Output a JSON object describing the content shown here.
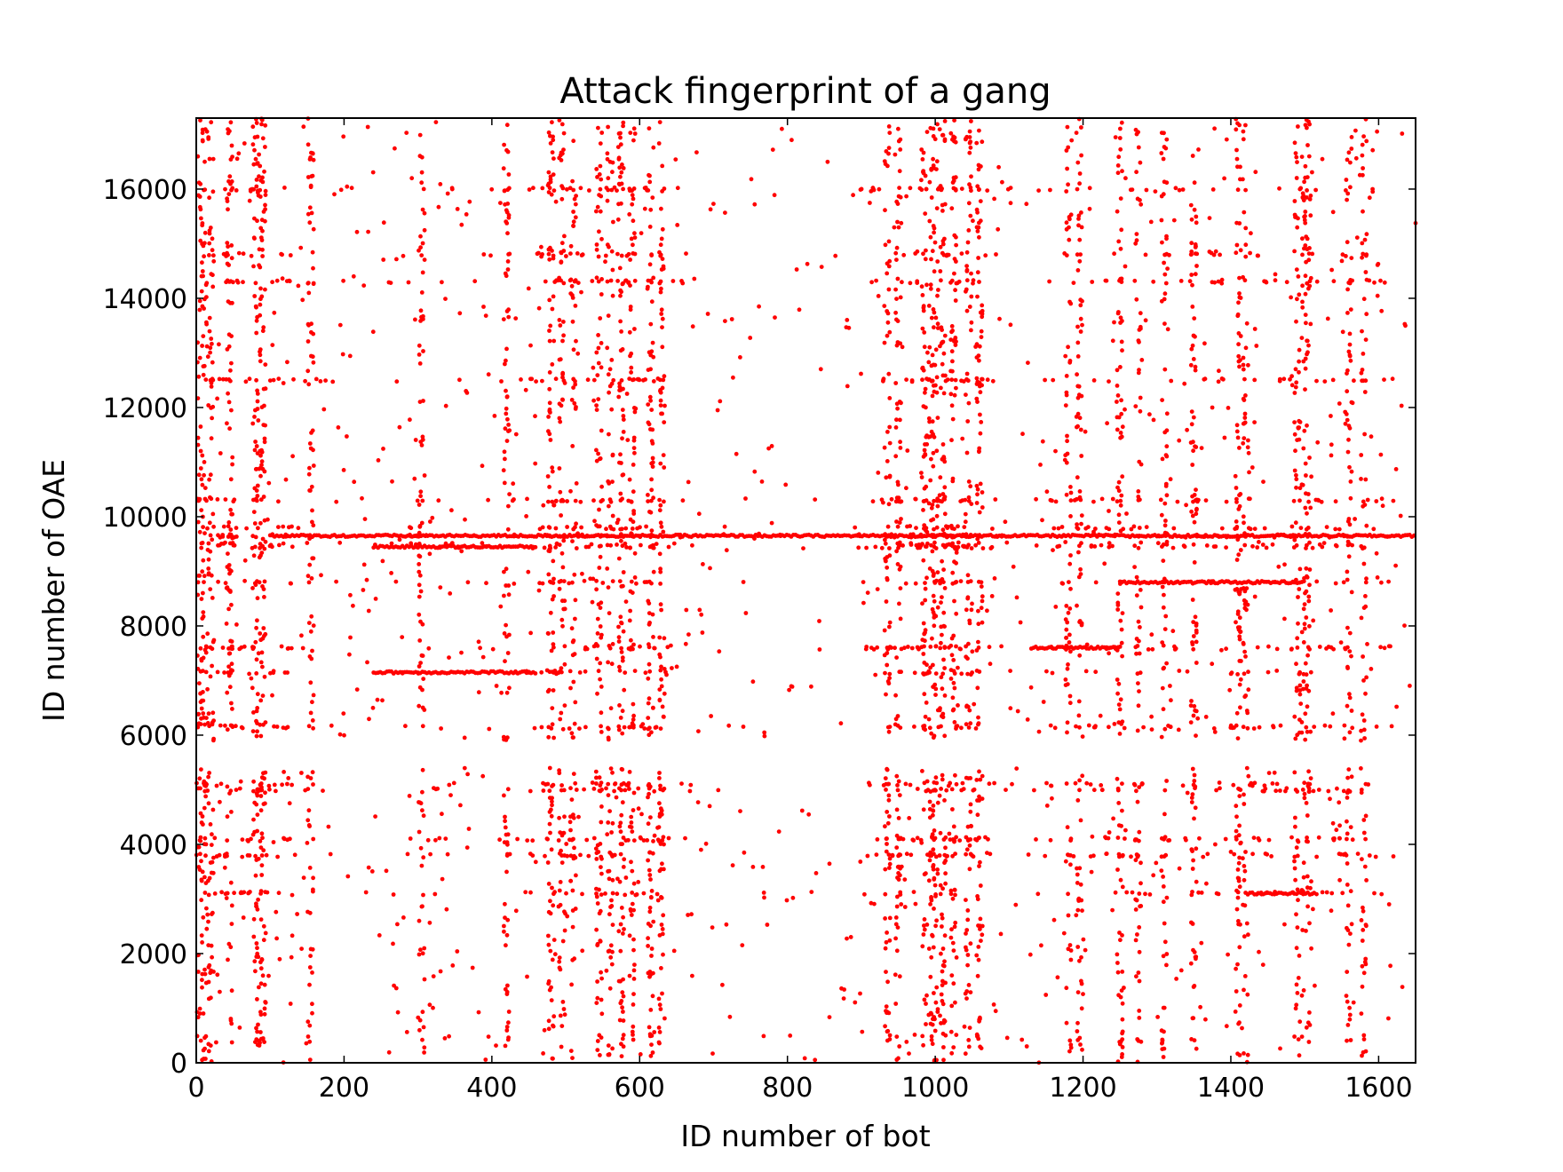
{
  "chart_data": {
    "type": "scatter",
    "title": "Attack fingerprint of a gang",
    "xlabel": "ID number of bot",
    "ylabel": "ID number of OAE",
    "xlim": [
      0,
      1650
    ],
    "ylim": [
      0,
      17300
    ],
    "x_ticks": [
      0,
      200,
      400,
      600,
      800,
      1000,
      1200,
      1400,
      1600
    ],
    "y_ticks": [
      0,
      2000,
      4000,
      6000,
      8000,
      10000,
      12000,
      14000,
      16000
    ],
    "x_tick_labels": [
      "0",
      "200",
      "400",
      "600",
      "800",
      "1000",
      "1200",
      "1400",
      "1600"
    ],
    "y_tick_labels": [
      "0",
      "2000",
      "4000",
      "6000",
      "8000",
      "10000",
      "12000",
      "14000",
      "16000"
    ],
    "grid": false,
    "marker_color": "#ff0000",
    "marker": "small dots",
    "series": [
      {
        "dense_bot_columns": [
          5,
          12,
          20,
          45,
          80,
          85,
          90,
          155,
          305,
          420,
          480,
          495,
          510,
          545,
          560,
          575,
          590,
          615,
          630,
          935,
          950,
          985,
          995,
          1000,
          1010,
          1025,
          1045,
          1060,
          1180,
          1195,
          1250,
          1275,
          1310,
          1350,
          1410,
          1420,
          1490,
          1500,
          1505,
          1560,
          1580
        ],
        "dense_oae_rows": [
          9650,
          9500,
          9800,
          9450,
          7150,
          7600,
          8800,
          6150,
          5100,
          5000,
          4100,
          3800,
          3100,
          14300,
          14800,
          16000,
          12500,
          10300
        ],
        "gap_oae_range": [
          5400,
          5900
        ],
        "segments": [
          {
            "x": [
              100,
              1650
            ],
            "y": 9650
          },
          {
            "x": [
              240,
              460
            ],
            "y": 9450
          },
          {
            "x": [
              240,
              460
            ],
            "y": 7150
          },
          {
            "x": [
              1130,
              1250
            ],
            "y": 7600
          },
          {
            "x": [
              1250,
              1500
            ],
            "y": 8800
          },
          {
            "x": [
              1420,
              1510
            ],
            "y": 3100
          }
        ]
      }
    ]
  }
}
